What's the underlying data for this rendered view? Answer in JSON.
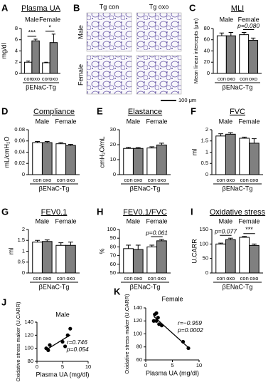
{
  "chart_data": [
    {
      "panel": "A",
      "type": "bar",
      "title": "Plasma UA",
      "y_label": "mg/dl",
      "x_label": "βENaC-Tg",
      "categories": [
        "Male",
        "Female"
      ],
      "series": [
        {
          "name": "con",
          "color": "#ffffff",
          "values": [
            2.0,
            1.9
          ],
          "errors": [
            0.2,
            0.1
          ]
        },
        {
          "name": "oxo",
          "color": "#808080",
          "values": [
            5.8,
            5.5
          ],
          "errors": [
            0.3,
            1.5
          ]
        }
      ],
      "ylim": [
        0,
        8
      ],
      "yticks": [
        0,
        2,
        4,
        6,
        8
      ],
      "annotations": [
        {
          "text": "***",
          "category": 0
        },
        {
          "text": "*",
          "category": 1
        }
      ]
    },
    {
      "panel": "B",
      "type": "image",
      "columns": [
        "Tg con",
        "Tg oxo"
      ],
      "rows": [
        "Male",
        "Female"
      ],
      "scale_bar": "100 μm"
    },
    {
      "panel": "C",
      "type": "bar",
      "title": "MLI",
      "y_label": "Mean linear intercepts (μm)",
      "x_label": "βENaC-Tg",
      "categories": [
        "Male",
        "Female"
      ],
      "series": [
        {
          "name": "con",
          "color": "#ffffff",
          "values": [
            67,
            69
          ],
          "errors": [
            5,
            4
          ]
        },
        {
          "name": "oxo",
          "color": "#808080",
          "values": [
            67,
            59
          ],
          "errors": [
            6,
            4
          ]
        }
      ],
      "ylim": [
        0,
        80
      ],
      "yticks": [
        0,
        20,
        40,
        60,
        80
      ],
      "annotations": [
        {
          "text": "p=0.080",
          "category": 1
        }
      ]
    },
    {
      "panel": "D",
      "type": "bar",
      "title": "Compliance",
      "y_label": "mL/cmH₂O",
      "x_label": "βENaC-Tg",
      "categories": [
        "Male",
        "Female"
      ],
      "series": [
        {
          "name": "con",
          "color": "#ffffff",
          "values": [
            0.057,
            0.055
          ],
          "errors": [
            0.002,
            0.002
          ]
        },
        {
          "name": "oxo",
          "color": "#808080",
          "values": [
            0.057,
            0.052
          ],
          "errors": [
            0.002,
            0.002
          ]
        }
      ],
      "ylim": [
        0,
        0.08
      ],
      "yticks": [
        0,
        0.02,
        0.04,
        0.06,
        0.08
      ],
      "annotations": []
    },
    {
      "panel": "E",
      "type": "bar",
      "title": "Elastance",
      "y_label": "cmH₂O/mL",
      "x_label": "βENaC-Tg",
      "categories": [
        "Male",
        "Female"
      ],
      "series": [
        {
          "name": "con",
          "color": "#ffffff",
          "values": [
            17.5,
            17.8
          ],
          "errors": [
            0.7,
            0.8
          ]
        },
        {
          "name": "oxo",
          "color": "#808080",
          "values": [
            17.5,
            19.8
          ],
          "errors": [
            0.6,
            1.2
          ]
        }
      ],
      "ylim": [
        0,
        30
      ],
      "yticks": [
        0,
        10,
        20,
        30
      ],
      "annotations": []
    },
    {
      "panel": "F",
      "type": "bar",
      "title": "FVC",
      "y_label": "ml",
      "x_label": "βENaC-Tg",
      "categories": [
        "Male",
        "Female"
      ],
      "series": [
        {
          "name": "con",
          "color": "#ffffff",
          "values": [
            1.72,
            1.62
          ],
          "errors": [
            0.1,
            0.05
          ]
        },
        {
          "name": "oxo",
          "color": "#808080",
          "values": [
            1.8,
            1.4
          ],
          "errors": [
            0.07,
            0.2
          ]
        }
      ],
      "ylim": [
        0,
        2
      ],
      "yticks": [
        0,
        0.5,
        1,
        1.5,
        2
      ],
      "annotations": []
    },
    {
      "panel": "G",
      "type": "bar",
      "title": "FEV0.1",
      "y_label": "ml",
      "x_label": "βENaC-Tg",
      "categories": [
        "Male",
        "Female"
      ],
      "series": [
        {
          "name": "con",
          "color": "#ffffff",
          "values": [
            1.42,
            1.27
          ],
          "errors": [
            0.08,
            0.12
          ]
        },
        {
          "name": "oxo",
          "color": "#808080",
          "values": [
            1.45,
            1.27
          ],
          "errors": [
            0.07,
            0.15
          ]
        }
      ],
      "ylim": [
        0,
        2
      ],
      "yticks": [
        0,
        0.5,
        1,
        1.5,
        2
      ],
      "annotations": []
    },
    {
      "panel": "H",
      "type": "bar",
      "title": "FEV0.1/FVC",
      "y_label": "%",
      "x_label": "βENaC-Tg",
      "categories": [
        "Male",
        "Female"
      ],
      "series": [
        {
          "name": "con",
          "color": "#ffffff",
          "values": [
            78,
            80
          ],
          "errors": [
            4,
            2
          ]
        },
        {
          "name": "oxo",
          "color": "#808080",
          "values": [
            77,
            87
          ],
          "errors": [
            5,
            1.5
          ]
        }
      ],
      "ylim": [
        50,
        100
      ],
      "yticks": [
        50,
        60,
        70,
        80,
        90,
        100
      ],
      "annotations": [
        {
          "text": "p=0.061",
          "category": 1
        }
      ]
    },
    {
      "panel": "I",
      "type": "bar",
      "title": "Oxidative stress",
      "y_label": "U.CARR",
      "x_label": "βENaC-Tg",
      "categories": [
        "Male",
        "Female"
      ],
      "series": [
        {
          "name": "con",
          "color": "#ffffff",
          "values": [
            100,
            123
          ],
          "errors": [
            3,
            3
          ]
        },
        {
          "name": "oxo",
          "color": "#808080",
          "values": [
            115,
            95
          ],
          "errors": [
            5,
            5
          ]
        }
      ],
      "ylim": [
        0,
        150
      ],
      "yticks": [
        0,
        50,
        100,
        150
      ],
      "annotations": [
        {
          "text": "p=0.077",
          "category": 0
        },
        {
          "text": "***",
          "category": 1
        }
      ]
    },
    {
      "panel": "J",
      "type": "scatter",
      "title": "Male",
      "x_label": "Plasma UA (mg/dl)",
      "y_label": "Oxidative stress maker (U.CARR)",
      "color": "#000000",
      "x": [
        1.8,
        2.2,
        2.5,
        5.0,
        5.5,
        6.0,
        6.5
      ],
      "values": [
        100,
        97,
        105,
        110,
        103,
        120,
        130
      ],
      "xlim": [
        0,
        10
      ],
      "xticks": [
        0,
        5,
        10
      ],
      "ylim": [
        80,
        140
      ],
      "yticks": [
        80,
        100,
        120,
        140
      ],
      "annotations": [
        "r=0.746",
        "p=0.054"
      ]
    },
    {
      "panel": "K",
      "type": "scatter",
      "title": "Female",
      "x_label": "Plasma UA (mg/dl)",
      "y_label": "Oxidative stress maker (U.CARR)",
      "color": "#000000",
      "x": [
        1.5,
        1.7,
        2.0,
        2.0,
        2.3,
        2.5,
        3.0,
        7.0,
        8.0
      ],
      "values": [
        120,
        130,
        132,
        120,
        125,
        115,
        113,
        88,
        78
      ],
      "xlim": [
        0,
        10
      ],
      "xticks": [
        0,
        5,
        10
      ],
      "ylim": [
        60,
        140
      ],
      "yticks": [
        60,
        80,
        100,
        120,
        140
      ],
      "annotations": [
        "r=−0.959",
        "p=0.0002"
      ]
    }
  ]
}
